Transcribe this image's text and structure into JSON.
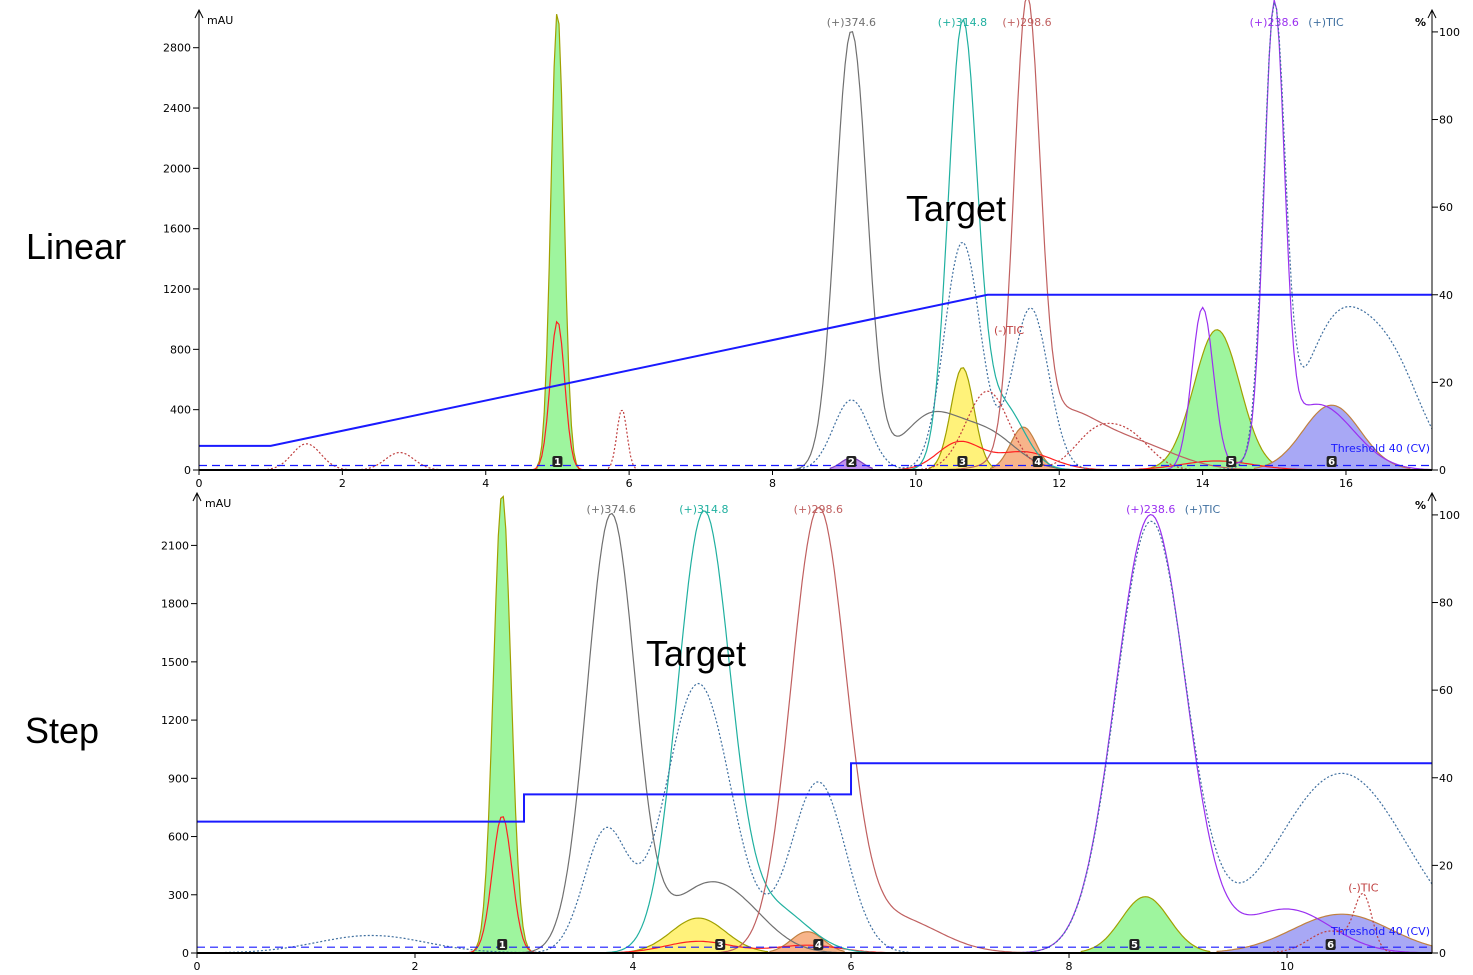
{
  "labels": {
    "top_side": "Linear",
    "bottom_side": "Step",
    "top_target": "Target",
    "bottom_target": "Target"
  },
  "chart_data": [
    {
      "type": "line",
      "name_label": "Linear",
      "left_unit": "mAU",
      "right_unit": "%",
      "xlim": [
        0,
        17.2
      ],
      "ylim": [
        0,
        3050
      ],
      "y2lim": [
        0,
        105
      ],
      "xticks": [
        0,
        2,
        4,
        6,
        8,
        10,
        12,
        14,
        16
      ],
      "yticks": [
        0,
        400,
        800,
        1200,
        1600,
        2000,
        2400,
        2800
      ],
      "y2ticks": [
        0,
        20,
        40,
        60,
        80,
        100
      ],
      "threshold": {
        "label": "Threshold 40 (CV)",
        "value": 30
      },
      "gradient": {
        "color": "#1a1aff",
        "points": [
          [
            0,
            5.5
          ],
          [
            1.0,
            5.5
          ],
          [
            11.0,
            40
          ],
          [
            17.2,
            40
          ]
        ]
      },
      "series": [
        {
          "name": "",
          "axis": "left",
          "color": "#a0a000",
          "fill": "#9ef59e",
          "peaks": [
            [
              5.0,
              3050,
              0.09
            ]
          ]
        },
        {
          "name": "",
          "axis": "left",
          "color": "#a0a000",
          "fill": "#fff27a",
          "peaks": [
            [
              10.65,
              680,
              0.16
            ]
          ]
        },
        {
          "name": "",
          "axis": "left",
          "color": "#c08040",
          "fill": "#f7b48a",
          "peaks": [
            [
              11.5,
              285,
              0.18
            ]
          ]
        },
        {
          "name": "",
          "axis": "left",
          "color": "#a0a000",
          "fill": "#9ef59e",
          "peaks": [
            [
              14.2,
              930,
              0.32
            ]
          ]
        },
        {
          "name": "",
          "axis": "left",
          "color": "#c08040",
          "fill": "#a8a8f5",
          "peaks": [
            [
              15.8,
              430,
              0.4
            ]
          ]
        },
        {
          "name": "",
          "axis": "left",
          "color": "#8040c0",
          "fill": "#c090f0",
          "peaks": [
            [
              9.1,
              80,
              0.15
            ]
          ]
        },
        {
          "name": "",
          "axis": "left",
          "color": "#ff2020",
          "peaks": [
            [
              5.0,
              990,
              0.1
            ],
            [
              10.6,
              180,
              0.3
            ],
            [
              11.5,
              120,
              0.4
            ],
            [
              14.2,
              60,
              0.5
            ]
          ]
        },
        {
          "name": "(+)374.6",
          "axis": "right",
          "color": "#707070",
          "peaks": [
            [
              9.1,
              100,
              0.22
            ],
            [
              10.2,
              12,
              0.4
            ],
            [
              11.0,
              8,
              0.4
            ]
          ]
        },
        {
          "name": "(+)314.8",
          "axis": "right",
          "color": "#20b0a0",
          "peaks": [
            [
              10.65,
              100,
              0.2
            ],
            [
              11.2,
              15,
              0.3
            ]
          ]
        },
        {
          "name": "(+)298.6",
          "axis": "right",
          "color": "#c06060",
          "peaks": [
            [
              11.55,
              100,
              0.18
            ],
            [
              12.0,
              12,
              0.5
            ],
            [
              13.0,
              6,
              0.6
            ]
          ]
        },
        {
          "name": "(+)238.6",
          "axis": "right",
          "color": "#9a30f0",
          "peaks": [
            [
              15.0,
              100,
              0.14
            ],
            [
              14.0,
              37,
              0.15
            ],
            [
              15.6,
              15,
              0.5
            ]
          ]
        },
        {
          "name": "(+)TIC",
          "axis": "right",
          "color": "#4070a0",
          "dash": "2,2",
          "peaks": [
            [
              9.1,
              16,
              0.25
            ],
            [
              10.65,
              52,
              0.25
            ],
            [
              11.6,
              37,
              0.25
            ],
            [
              15.0,
              100,
              0.15
            ],
            [
              15.9,
              34,
              0.5
            ],
            [
              16.7,
              18,
              0.4
            ]
          ]
        },
        {
          "name": "(-)TIC",
          "axis": "right",
          "color": "#c04040",
          "dash": "2,2",
          "peaks": [
            [
              1.5,
              6,
              0.2
            ],
            [
              2.8,
              4,
              0.2
            ],
            [
              5.9,
              14,
              0.07
            ],
            [
              11.0,
              18,
              0.3
            ],
            [
              12.5,
              8,
              0.3
            ],
            [
              13.0,
              7,
              0.3
            ]
          ]
        }
      ],
      "peak_labels": [
        {
          "label": "1",
          "x": 5.0
        },
        {
          "label": "2",
          "x": 9.1
        },
        {
          "label": "3",
          "x": 10.65
        },
        {
          "label": "4",
          "x": 11.7
        },
        {
          "label": "5",
          "x": 14.4
        },
        {
          "label": "6",
          "x": 15.8
        }
      ]
    },
    {
      "type": "line",
      "name_label": "Step",
      "left_unit": "mAU",
      "right_unit": "%",
      "xlim": [
        0,
        11.33
      ],
      "ylim": [
        0,
        2370
      ],
      "y2lim": [
        0,
        105
      ],
      "xticks": [
        0,
        2,
        4,
        6,
        8,
        10
      ],
      "yticks": [
        0,
        300,
        600,
        900,
        1200,
        1500,
        1800,
        2100
      ],
      "y2ticks": [
        0,
        20,
        40,
        60,
        80,
        100
      ],
      "threshold": {
        "label": "Threshold 40 (CV)",
        "value": 30
      },
      "gradient": {
        "color": "#1a1aff",
        "points": [
          [
            0,
            30
          ],
          [
            3.0,
            30
          ],
          [
            3.0,
            36.2
          ],
          [
            6.0,
            36.2
          ],
          [
            6.0,
            43.3
          ],
          [
            11.33,
            43.3
          ]
        ]
      },
      "series": [
        {
          "name": "",
          "axis": "left",
          "color": "#a0a000",
          "fill": "#9ef59e",
          "peaks": [
            [
              2.8,
              2370,
              0.08
            ]
          ]
        },
        {
          "name": "",
          "axis": "left",
          "color": "#a0a000",
          "fill": "#fff27a",
          "peaks": [
            [
              4.6,
              180,
              0.25
            ]
          ]
        },
        {
          "name": "",
          "axis": "left",
          "color": "#c08040",
          "fill": "#f7b48a",
          "peaks": [
            [
              5.6,
              110,
              0.15
            ]
          ]
        },
        {
          "name": "",
          "axis": "left",
          "color": "#a0a000",
          "fill": "#9ef59e",
          "peaks": [
            [
              8.7,
              290,
              0.22
            ]
          ]
        },
        {
          "name": "",
          "axis": "left",
          "color": "#c08040",
          "fill": "#a8a8f5",
          "peaks": [
            [
              10.5,
              200,
              0.45
            ]
          ]
        },
        {
          "name": "",
          "axis": "left",
          "color": "#ff2020",
          "peaks": [
            [
              2.8,
              706,
              0.09
            ],
            [
              4.6,
              60,
              0.3
            ],
            [
              5.6,
              40,
              0.3
            ]
          ]
        },
        {
          "name": "(+)374.6",
          "axis": "right",
          "color": "#707070",
          "peaks": [
            [
              3.8,
              100,
              0.22
            ],
            [
              4.6,
              12,
              0.3
            ],
            [
              5.0,
              8,
              0.3
            ]
          ]
        },
        {
          "name": "(+)314.8",
          "axis": "right",
          "color": "#20b0a0",
          "peaks": [
            [
              4.65,
              100,
              0.24
            ],
            [
              5.3,
              10,
              0.3
            ]
          ]
        },
        {
          "name": "(+)298.6",
          "axis": "right",
          "color": "#c06060",
          "peaks": [
            [
              5.7,
              100,
              0.25
            ],
            [
              6.4,
              8,
              0.4
            ]
          ]
        },
        {
          "name": "(+)238.6",
          "axis": "right",
          "color": "#9a30f0",
          "peaks": [
            [
              8.75,
              100,
              0.32
            ],
            [
              10.0,
              10,
              0.4
            ]
          ]
        },
        {
          "name": "(+)TIC",
          "axis": "right",
          "color": "#4070a0",
          "dash": "2,2",
          "peaks": [
            [
              1.6,
              4,
              0.5
            ],
            [
              3.75,
              27.5,
              0.2
            ],
            [
              4.6,
              61.5,
              0.3
            ],
            [
              5.7,
              39,
              0.25
            ],
            [
              8.75,
              98,
              0.32
            ],
            [
              10.5,
              41,
              0.6
            ]
          ]
        },
        {
          "name": "(-)TIC",
          "axis": "right",
          "color": "#c04040",
          "dash": "2,2",
          "peaks": [
            [
              10.7,
              12,
              0.08
            ],
            [
              10.4,
              5,
              0.2
            ]
          ]
        }
      ],
      "peak_labels": [
        {
          "label": "1",
          "x": 2.8
        },
        {
          "label": "3",
          "x": 4.8
        },
        {
          "label": "4",
          "x": 5.7
        },
        {
          "label": "5",
          "x": 8.6
        },
        {
          "label": "6",
          "x": 10.4
        }
      ]
    }
  ]
}
